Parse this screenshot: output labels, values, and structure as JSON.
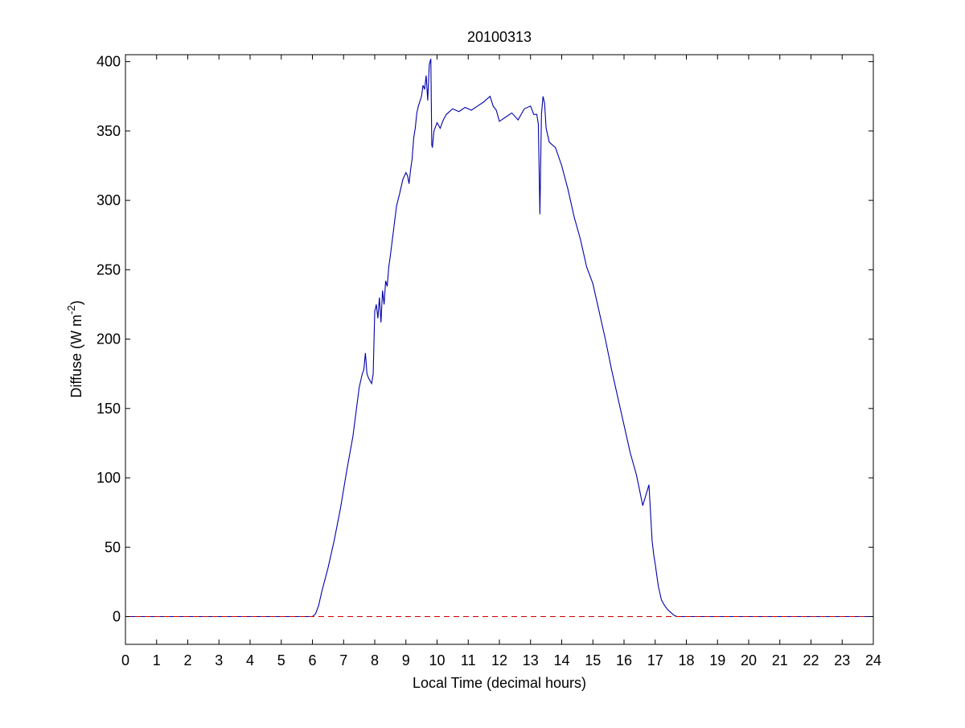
{
  "figure": {
    "background": "#ffffff"
  },
  "chart_data": {
    "type": "line",
    "title": "20100313",
    "xlabel": "Local Time (decimal hours)",
    "ylabel": {
      "main": "Diffuse (W m",
      "superscript": "-2",
      "close": ")"
    },
    "xlim": [
      0,
      24
    ],
    "ylim": [
      -20,
      405
    ],
    "xticks": [
      0,
      1,
      2,
      3,
      4,
      5,
      6,
      7,
      8,
      9,
      10,
      11,
      12,
      13,
      14,
      15,
      16,
      17,
      18,
      19,
      20,
      21,
      22,
      23,
      24
    ],
    "yticks": [
      0,
      50,
      100,
      150,
      200,
      250,
      300,
      350,
      400
    ],
    "grid": false,
    "series": [
      {
        "color": "#0000aa",
        "style": "solid",
        "x": [
          0,
          6.0,
          6.1,
          6.2,
          6.3,
          6.5,
          6.7,
          6.9,
          7.1,
          7.3,
          7.5,
          7.6,
          7.65,
          7.7,
          7.75,
          7.8,
          7.85,
          7.9,
          7.95,
          8.0,
          8.05,
          8.1,
          8.15,
          8.2,
          8.25,
          8.3,
          8.35,
          8.4,
          8.45,
          8.5,
          8.6,
          8.7,
          8.8,
          8.9,
          9.0,
          9.05,
          9.1,
          9.15,
          9.2,
          9.25,
          9.3,
          9.35,
          9.4,
          9.5,
          9.55,
          9.6,
          9.65,
          9.7,
          9.75,
          9.8,
          9.83,
          9.85,
          9.9,
          10.0,
          10.1,
          10.2,
          10.3,
          10.5,
          10.7,
          10.9,
          11.1,
          11.3,
          11.5,
          11.7,
          11.8,
          11.9,
          12.0,
          12.2,
          12.4,
          12.6,
          12.8,
          13.0,
          13.1,
          13.2,
          13.25,
          13.3,
          13.35,
          13.4,
          13.45,
          13.5,
          13.6,
          13.8,
          14.0,
          14.2,
          14.4,
          14.6,
          14.8,
          15.0,
          15.2,
          15.4,
          15.6,
          15.8,
          16.0,
          16.2,
          16.4,
          16.6,
          16.8,
          16.9,
          16.95,
          17.0,
          17.05,
          17.1,
          17.2,
          17.3,
          17.4,
          17.5,
          17.6,
          17.7,
          17.8,
          17.9,
          18.0,
          18.1,
          18.2,
          24
        ],
        "y": [
          0,
          0,
          2,
          8,
          18,
          35,
          55,
          78,
          105,
          130,
          165,
          175,
          178,
          190,
          175,
          172,
          170,
          168,
          175,
          220,
          225,
          215,
          230,
          212,
          235,
          225,
          242,
          238,
          252,
          260,
          278,
          296,
          305,
          315,
          320,
          318,
          312,
          322,
          330,
          345,
          352,
          363,
          368,
          375,
          383,
          380,
          390,
          372,
          398,
          402,
          340,
          338,
          350,
          356,
          352,
          358,
          362,
          366,
          364,
          367,
          365,
          368,
          371,
          375,
          368,
          365,
          357,
          360,
          363,
          358,
          366,
          368,
          362,
          362,
          355,
          290,
          362,
          375,
          370,
          352,
          342,
          338,
          325,
          308,
          288,
          272,
          252,
          240,
          220,
          200,
          178,
          158,
          138,
          118,
          102,
          80,
          95,
          55,
          45,
          38,
          30,
          22,
          12,
          8,
          5,
          3,
          1,
          0,
          0,
          0,
          0,
          0,
          0,
          0
        ]
      },
      {
        "color": "#cc0000",
        "style": "dashed",
        "x": [
          0,
          24
        ],
        "y": [
          0,
          0
        ]
      }
    ]
  }
}
